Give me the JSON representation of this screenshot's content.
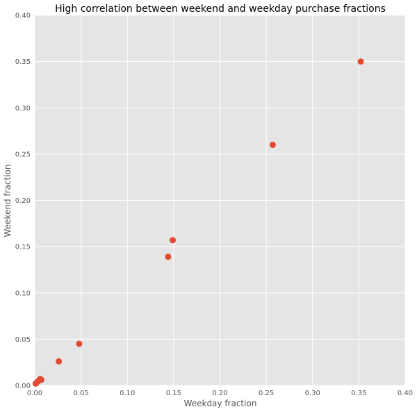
{
  "chart_data": {
    "type": "scatter",
    "title": "High correlation between weekend and weekday purchase fractions",
    "xlabel": "Weekday fraction",
    "ylabel": "Weekend fraction",
    "xlim": [
      0,
      0.4
    ],
    "ylim": [
      0,
      0.4
    ],
    "xticks": [
      "0.00",
      "0.05",
      "0.10",
      "0.15",
      "0.20",
      "0.25",
      "0.30",
      "0.35",
      "0.40"
    ],
    "yticks": [
      "0.00",
      "0.05",
      "0.10",
      "0.15",
      "0.20",
      "0.25",
      "0.30",
      "0.35",
      "0.40"
    ],
    "grid": true,
    "legend": "none",
    "colors": {
      "background": "#e5e5e5",
      "grid": "#ffffff",
      "marker": "#e24a33",
      "text": "#555555",
      "title": "#000000"
    },
    "points": [
      {
        "x": 0.001,
        "y": 0.002
      },
      {
        "x": 0.002,
        "y": 0.003
      },
      {
        "x": 0.003,
        "y": 0.004
      },
      {
        "x": 0.005,
        "y": 0.006
      },
      {
        "x": 0.006,
        "y": 0.007
      },
      {
        "x": 0.007,
        "y": 0.006
      },
      {
        "x": 0.026,
        "y": 0.026
      },
      {
        "x": 0.048,
        "y": 0.045
      },
      {
        "x": 0.144,
        "y": 0.139
      },
      {
        "x": 0.149,
        "y": 0.157
      },
      {
        "x": 0.257,
        "y": 0.26
      },
      {
        "x": 0.352,
        "y": 0.35
      }
    ]
  }
}
